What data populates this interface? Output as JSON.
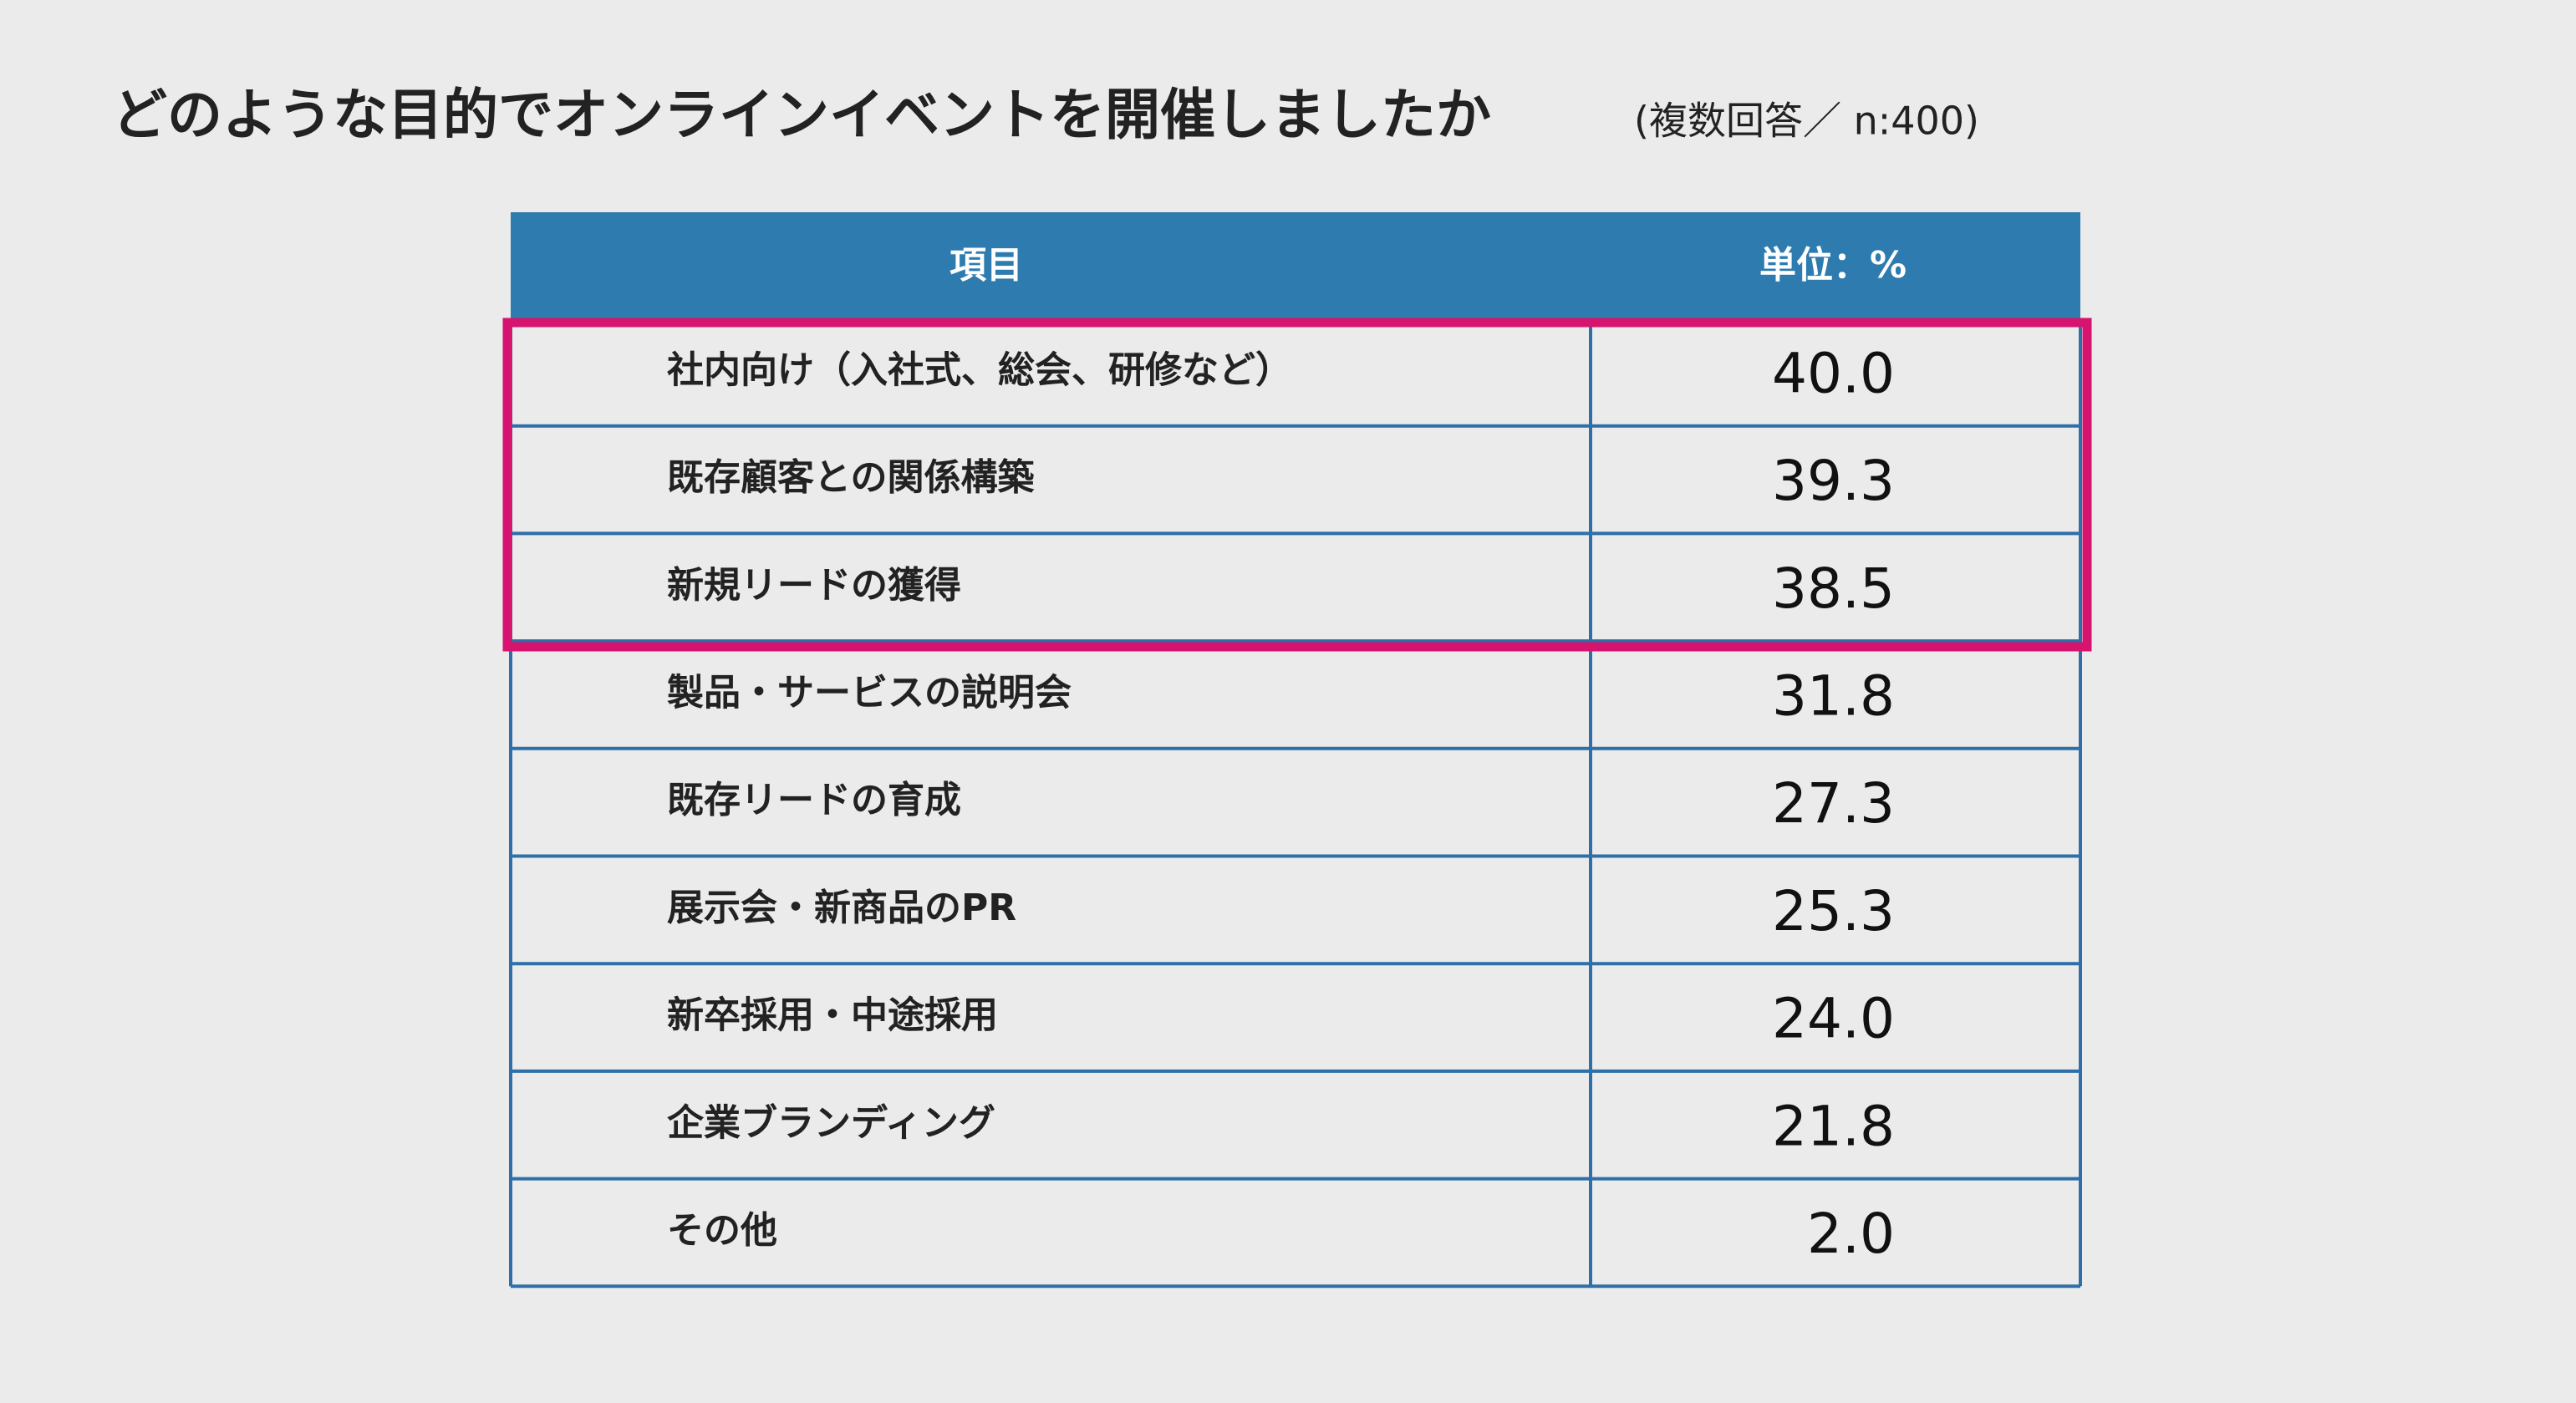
{
  "header": {
    "title": "どのような目的でオンラインイベントを開催しましたか",
    "subtitle": "(複数回答／ n:400)"
  },
  "table": {
    "columns": [
      "項目",
      "単位：%"
    ],
    "rows": [
      [
        "社内向け（入社式、総会、研修など）",
        "40.0"
      ],
      [
        "既存顧客との関係構築",
        "39.3"
      ],
      [
        "新規リードの獲得",
        "38.5"
      ],
      [
        "製品・サービスの説明会",
        "31.8"
      ],
      [
        "既存リードの育成",
        "27.3"
      ],
      [
        "展示会・新商品のPR",
        "25.3"
      ],
      [
        "新卒採用・中途採用",
        "24.0"
      ],
      [
        "企業ブランディング",
        "21.8"
      ],
      [
        "その他",
        "2.0"
      ]
    ]
  }
}
